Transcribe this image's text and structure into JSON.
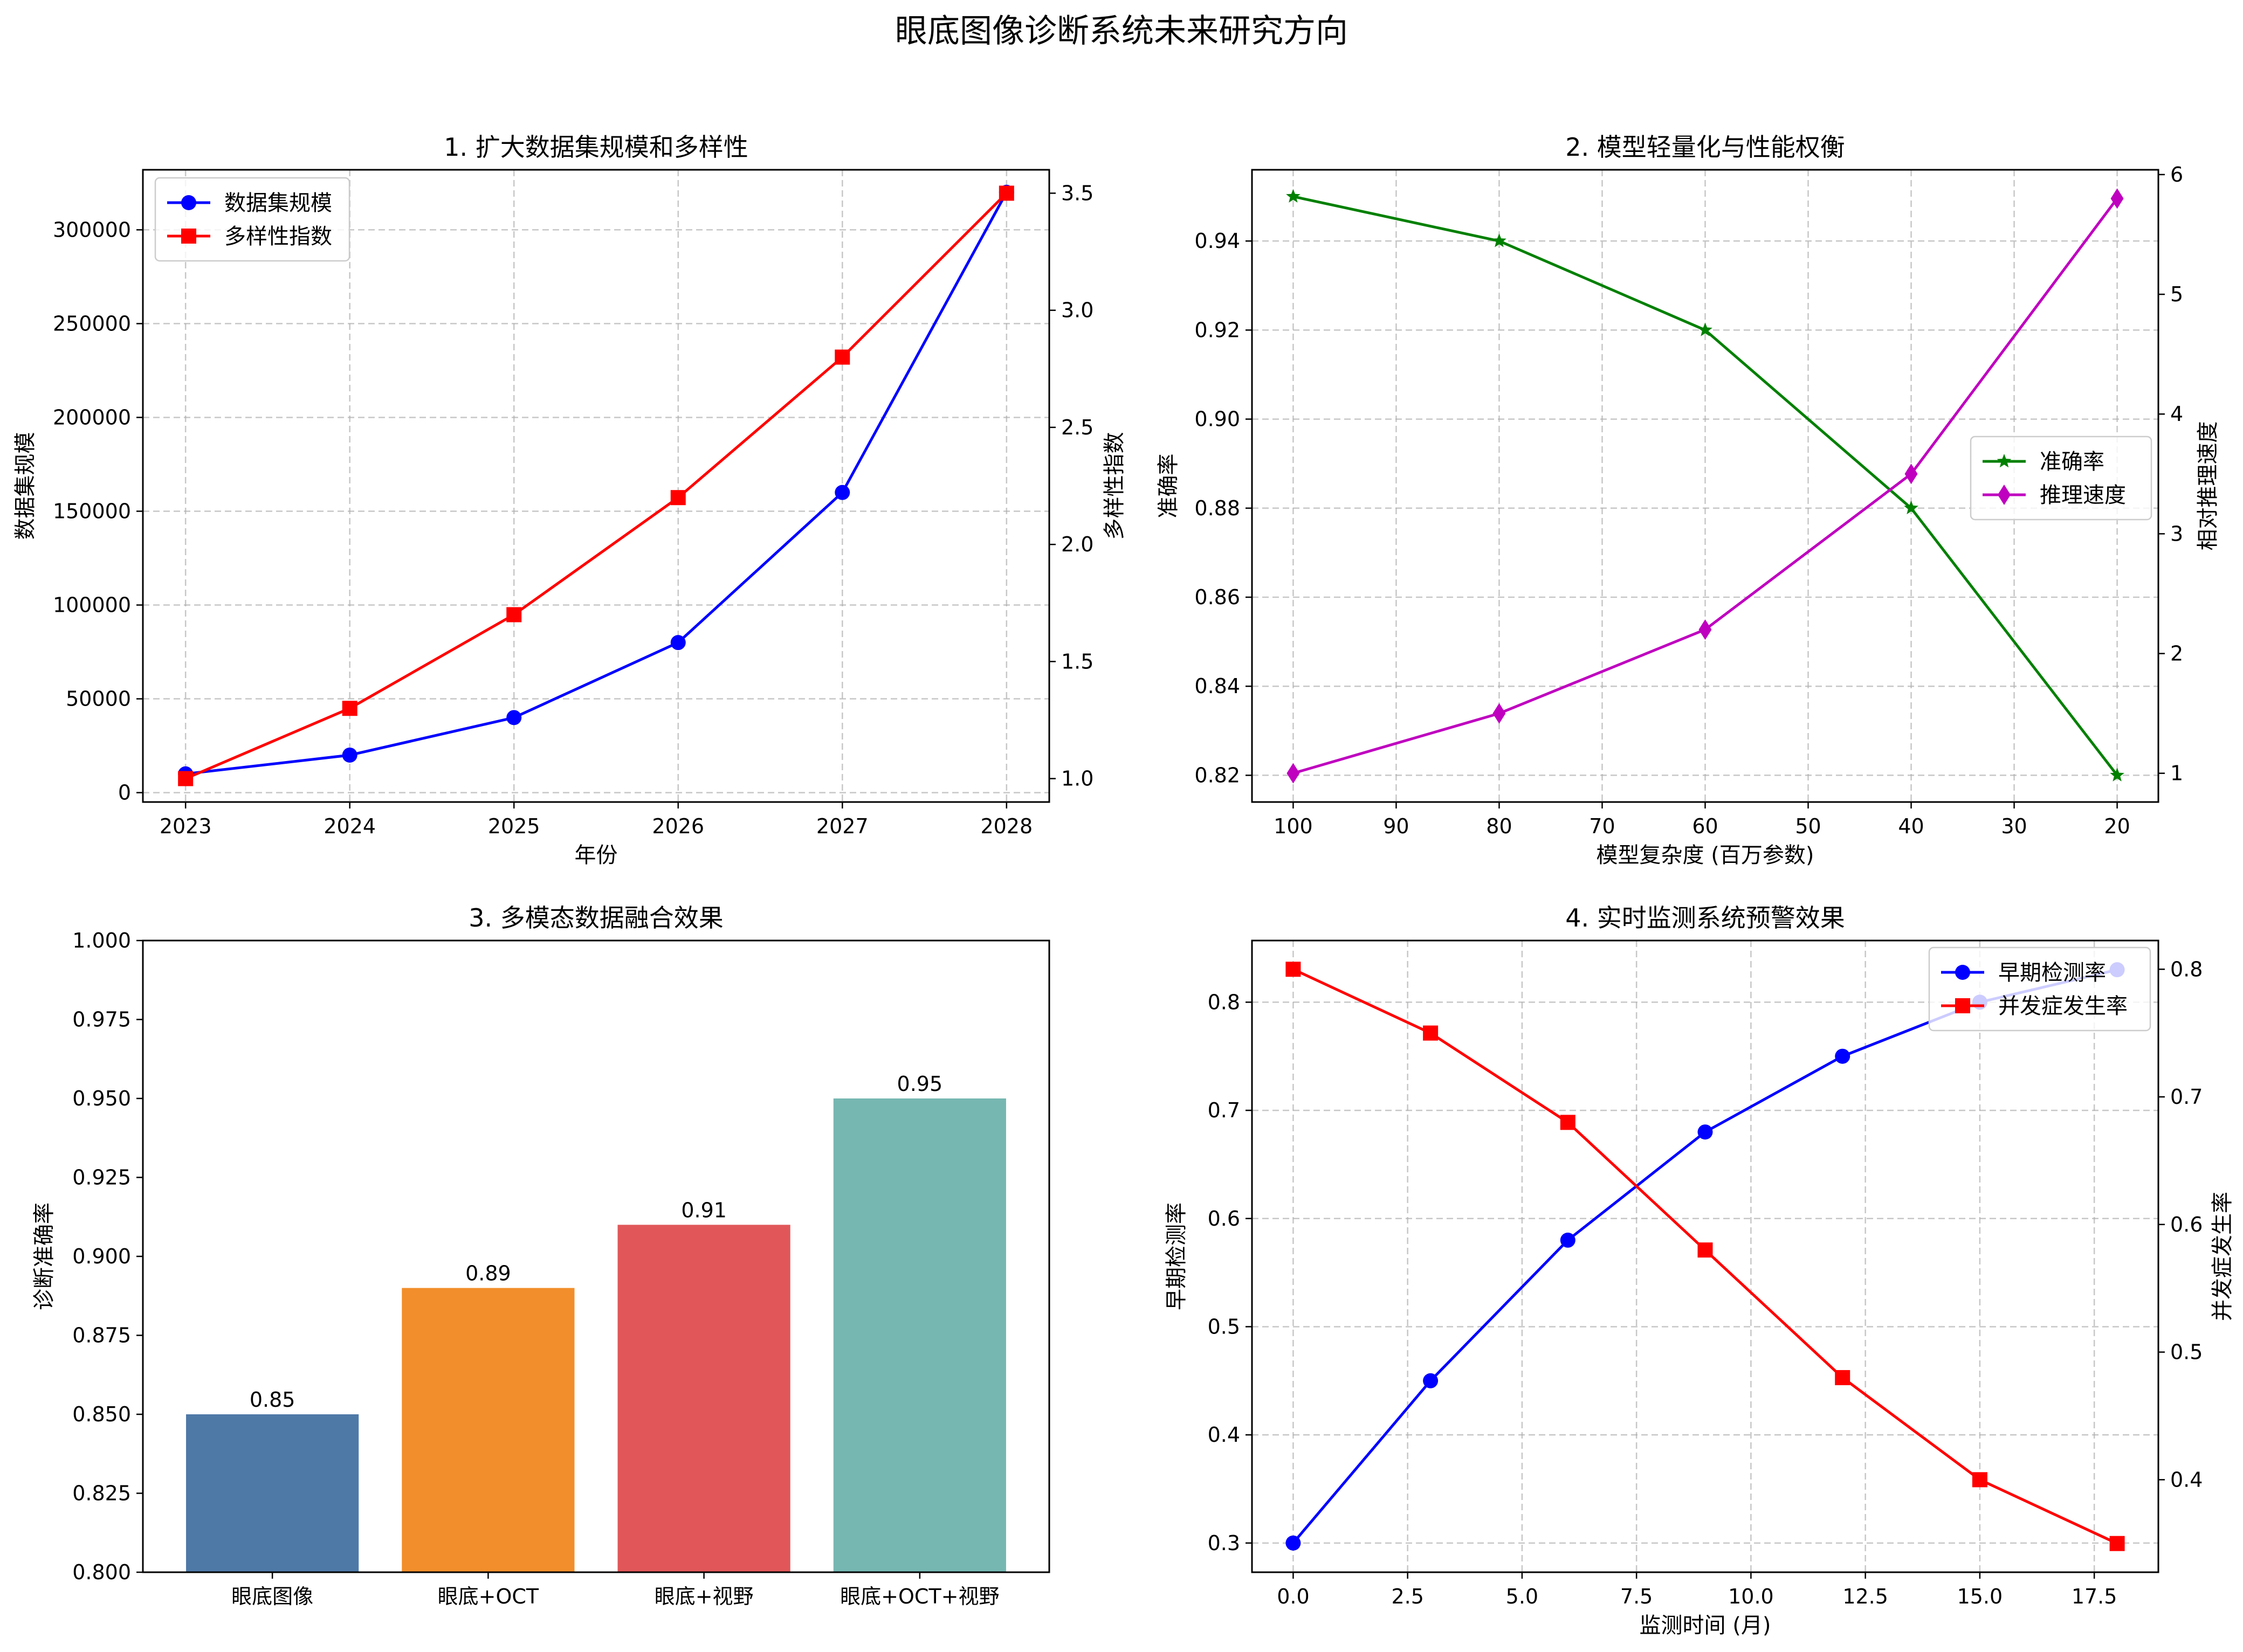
{
  "suptitle": "眼底图像诊断系统未来研究方向",
  "chart_data": [
    {
      "type": "line",
      "title": "1. 扩大数据集规模和多样性",
      "xlabel": "年份",
      "ylabel": "数据集规模",
      "ylabel_right": "多样性指数",
      "categories": [
        "2023",
        "2024",
        "2025",
        "2026",
        "2027",
        "2028"
      ],
      "x": [
        2023,
        2024,
        2025,
        2026,
        2027,
        2028
      ],
      "ylim": [
        -5000,
        332000
      ],
      "ylim_right": [
        0.9,
        3.6
      ],
      "yticks": [
        "0",
        "50000",
        "100000",
        "150000",
        "200000",
        "250000",
        "300000"
      ],
      "yticks_right": [
        "1.0",
        "1.5",
        "2.0",
        "2.5",
        "3.0",
        "3.5"
      ],
      "legend": "top-left",
      "series": [
        {
          "name": "数据集规模",
          "axis": "left",
          "color": "#0000ff",
          "marker": "circle",
          "values": [
            10000,
            20000,
            40000,
            80000,
            160000,
            320000
          ]
        },
        {
          "name": "多样性指数",
          "axis": "right",
          "color": "#ff0000",
          "marker": "square",
          "values": [
            1.0,
            1.3,
            1.7,
            2.2,
            2.8,
            3.5
          ]
        }
      ]
    },
    {
      "type": "line",
      "title": "2. 模型轻量化与性能权衡",
      "xlabel": "模型复杂度 (百万参数)",
      "ylabel": "准确率",
      "ylabel_right": "相对推理速度",
      "x": [
        100,
        80,
        60,
        40,
        20
      ],
      "xlim": [
        104,
        16
      ],
      "xticks": [
        "100",
        "90",
        "80",
        "70",
        "60",
        "50",
        "40",
        "30",
        "20"
      ],
      "ylim": [
        0.814,
        0.956
      ],
      "ylim_right": [
        0.76,
        6.04
      ],
      "yticks": [
        "0.82",
        "0.84",
        "0.86",
        "0.88",
        "0.90",
        "0.92",
        "0.94"
      ],
      "yticks_right": [
        "1",
        "2",
        "3",
        "4",
        "5",
        "6"
      ],
      "legend": "center-right",
      "series": [
        {
          "name": "准确率",
          "axis": "left",
          "color": "#008000",
          "marker": "star",
          "values": [
            0.95,
            0.94,
            0.92,
            0.88,
            0.82
          ]
        },
        {
          "name": "推理速度",
          "axis": "right",
          "color": "#bf00bf",
          "marker": "diamond",
          "values": [
            1.0,
            1.5,
            2.2,
            3.5,
            5.8
          ]
        }
      ]
    },
    {
      "type": "bar",
      "title": "3. 多模态数据融合效果",
      "xlabel": "",
      "ylabel": "诊断准确率",
      "categories": [
        "眼底图像",
        "眼底+OCT",
        "眼底+视野",
        "眼底+OCT+视野"
      ],
      "values": [
        0.85,
        0.89,
        0.91,
        0.95
      ],
      "value_labels": [
        "0.85",
        "0.89",
        "0.91",
        "0.95"
      ],
      "colors": [
        "#4e79a7",
        "#f28e2b",
        "#e15759",
        "#76b7b2"
      ],
      "ylim": [
        0.8,
        1.0
      ],
      "yticks": [
        "0.800",
        "0.825",
        "0.850",
        "0.875",
        "0.900",
        "0.925",
        "0.950",
        "0.975",
        "1.000"
      ]
    },
    {
      "type": "line",
      "title": "4. 实时监测系统预警效果",
      "xlabel": "监测时间 (月)",
      "ylabel": "早期检测率",
      "ylabel_right": "并发症发生率",
      "x": [
        0,
        3,
        6,
        9,
        12,
        15,
        18
      ],
      "xlim": [
        -0.9,
        18.9
      ],
      "xticks": [
        "0.0",
        "2.5",
        "5.0",
        "7.5",
        "10.0",
        "12.5",
        "15.0",
        "17.5"
      ],
      "ylim": [
        0.273,
        0.857
      ],
      "ylim_right": [
        0.3275,
        0.8225
      ],
      "yticks": [
        "0.3",
        "0.4",
        "0.5",
        "0.6",
        "0.7",
        "0.8"
      ],
      "yticks_right": [
        "0.4",
        "0.5",
        "0.6",
        "0.7",
        "0.8"
      ],
      "legend": "top-right",
      "series": [
        {
          "name": "早期检测率",
          "axis": "left",
          "color": "#0000ff",
          "marker": "circle",
          "values": [
            0.3,
            0.45,
            0.58,
            0.68,
            0.75,
            0.8,
            0.83
          ]
        },
        {
          "name": "并发症发生率",
          "axis": "right",
          "color": "#ff0000",
          "marker": "square",
          "values": [
            0.8,
            0.75,
            0.68,
            0.58,
            0.48,
            0.4,
            0.35
          ]
        }
      ]
    }
  ]
}
